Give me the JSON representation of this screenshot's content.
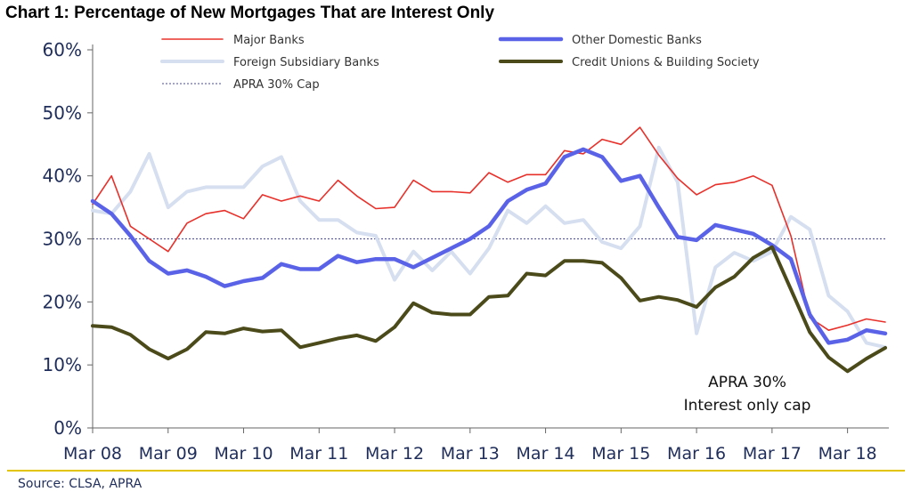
{
  "title": "Chart 1: Percentage of New Mortgages That are Interest Only",
  "source": "Source: CLSA, APRA",
  "chart_data": {
    "type": "line",
    "x_tick_labels": [
      "Mar 08",
      "Mar 09",
      "Mar 10",
      "Mar 11",
      "Mar 12",
      "Mar 13",
      "Mar 14",
      "Mar 15",
      "Mar 16",
      "Mar 17",
      "Mar 18"
    ],
    "y_tick_labels": [
      "0%",
      "10%",
      "20%",
      "30%",
      "40%",
      "50%",
      "60%"
    ],
    "ylim": [
      0,
      60
    ],
    "x_start": "Mar 08",
    "x_step": "quarterly",
    "legend": {
      "placement": "top",
      "columns": 2
    },
    "reference_line": {
      "name": "APRA 30% Cap",
      "value": 30,
      "color": "#4a4a8a",
      "style": "dotted"
    },
    "annotation": [
      "APRA 30%",
      "Interest only cap"
    ],
    "series": [
      {
        "name": "Major Banks",
        "color": "#e8302a",
        "width": 1.6,
        "values": [
          35.5,
          40,
          32,
          30,
          28,
          32.5,
          34,
          34.5,
          33.2,
          37,
          36,
          36.8,
          36,
          39.3,
          36.8,
          34.8,
          35,
          39.3,
          37.5,
          37.5,
          37.3,
          40.5,
          39,
          40.2,
          40.2,
          44,
          43.5,
          45.8,
          45,
          47.7,
          43.3,
          39.6,
          37,
          38.6,
          39,
          40,
          38.5,
          30.5,
          17.5,
          15.5,
          16.3,
          17.3,
          16.8
        ]
      },
      {
        "name": "Other Domestic Banks",
        "color": "#5a63e8",
        "width": 4.5,
        "values": [
          36,
          34,
          30.5,
          26.5,
          24.5,
          25,
          24,
          22.5,
          23.3,
          23.8,
          26,
          25.2,
          25.2,
          27.3,
          26.3,
          26.8,
          26.8,
          25.5,
          27,
          28.5,
          30,
          32,
          36,
          37.8,
          38.8,
          43,
          44.2,
          43,
          39.2,
          40,
          35,
          30.3,
          29.8,
          32.2,
          31.5,
          30.8,
          29,
          26.8,
          18,
          13.5,
          14,
          15.5,
          15
        ]
      },
      {
        "name": "Foreign Subsidiary Banks",
        "color": "#d6dff0",
        "width": 4,
        "values": [
          34.5,
          34,
          37.5,
          43.5,
          35,
          37.5,
          38.2,
          38.2,
          38.2,
          41.5,
          43,
          36,
          33,
          33,
          31,
          30.5,
          23.5,
          28,
          25,
          28,
          24.5,
          28.5,
          34.5,
          32.5,
          35.2,
          32.5,
          33,
          29.5,
          28.5,
          32,
          44.5,
          39,
          15,
          25.5,
          27.8,
          26.5,
          28,
          33.5,
          31.5,
          21,
          18.5,
          13.5,
          12.8
        ]
      },
      {
        "name": "Credit Unions & Building Society",
        "color": "#4a4a1a",
        "width": 4,
        "values": [
          16.2,
          16,
          14.8,
          12.5,
          11,
          12.5,
          15.2,
          15,
          15.8,
          15.3,
          15.5,
          12.8,
          13.5,
          14.2,
          14.7,
          13.8,
          16,
          19.8,
          18.3,
          18,
          18,
          20.8,
          21,
          24.5,
          24.2,
          26.5,
          26.5,
          26.2,
          23.8,
          20.2,
          20.8,
          20.3,
          19.2,
          22.3,
          24,
          27,
          28.7,
          22,
          15.2,
          11.2,
          9,
          11,
          12.7
        ]
      }
    ]
  }
}
